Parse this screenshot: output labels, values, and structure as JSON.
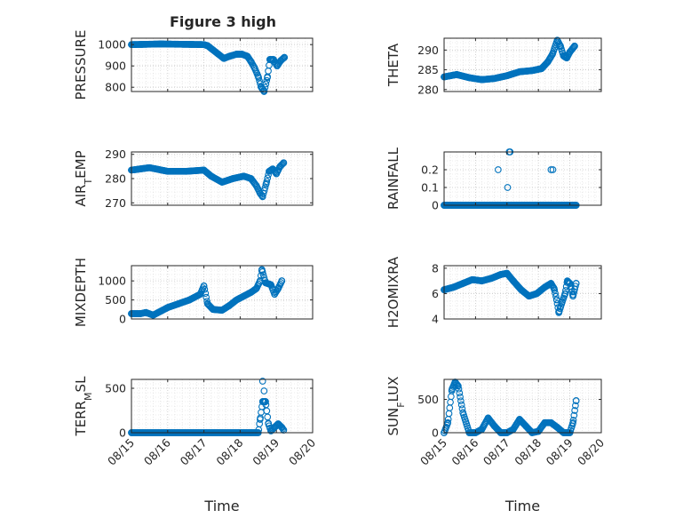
{
  "figure": {
    "title": "Figure 3 high",
    "marker_color": "#0072BD"
  },
  "chart_data": [
    {
      "type": "scatter",
      "ylabel": "PRESSURE",
      "xlabel": "",
      "title": "Figure 3 high",
      "xlim": [
        0,
        5
      ],
      "ylim": [
        780,
        1030
      ],
      "yticks": [
        800,
        900,
        1000
      ],
      "xticks": [
        0,
        1,
        2,
        3,
        4,
        5
      ],
      "xticklabels": [],
      "grid": true,
      "series": [
        {
          "anchors": [
            [
              0,
              1000
            ],
            [
              0.3,
              1001
            ],
            [
              0.8,
              1003
            ],
            [
              1.2,
              1002
            ],
            [
              1.6,
              1001
            ],
            [
              2.0,
              1000
            ],
            [
              2.1,
              995
            ],
            [
              2.25,
              975
            ],
            [
              2.4,
              955
            ],
            [
              2.55,
              935
            ],
            [
              2.7,
              945
            ],
            [
              2.9,
              955
            ],
            [
              3.05,
              955
            ],
            [
              3.2,
              945
            ],
            [
              3.3,
              920
            ],
            [
              3.4,
              890
            ],
            [
              3.5,
              850
            ],
            [
              3.58,
              800
            ],
            [
              3.66,
              780
            ],
            [
              3.75,
              845
            ],
            [
              3.82,
              930
            ],
            [
              3.92,
              930
            ],
            [
              4.02,
              900
            ],
            [
              4.12,
              925
            ],
            [
              4.22,
              940
            ]
          ]
        }
      ]
    },
    {
      "type": "scatter",
      "ylabel": "THETA",
      "xlabel": "",
      "xlim": [
        0,
        5
      ],
      "ylim": [
        279.5,
        293
      ],
      "yticks": [
        280,
        285,
        290
      ],
      "xticks": [
        0,
        1,
        2,
        3,
        4,
        5
      ],
      "xticklabels": [],
      "grid": true,
      "series": [
        {
          "anchors": [
            [
              0,
              283.2
            ],
            [
              0.4,
              283.8
            ],
            [
              0.8,
              283
            ],
            [
              1.2,
              282.5
            ],
            [
              1.6,
              282.8
            ],
            [
              2.0,
              283.5
            ],
            [
              2.4,
              284.5
            ],
            [
              2.8,
              284.8
            ],
            [
              3.1,
              285.3
            ],
            [
              3.3,
              287
            ],
            [
              3.45,
              289
            ],
            [
              3.6,
              292.5
            ],
            [
              3.7,
              291
            ],
            [
              3.8,
              288.5
            ],
            [
              3.9,
              288
            ],
            [
              4.0,
              289.5
            ],
            [
              4.15,
              291
            ]
          ]
        }
      ]
    },
    {
      "type": "scatter",
      "ylabel": "AIR_TEMP",
      "xlabel": "",
      "xlim": [
        0,
        5
      ],
      "ylim": [
        269,
        291
      ],
      "yticks": [
        270,
        280,
        290
      ],
      "xticks": [
        0,
        1,
        2,
        3,
        4,
        5
      ],
      "xticklabels": [],
      "grid": true,
      "series": [
        {
          "anchors": [
            [
              0,
              283.5
            ],
            [
              0.5,
              284.5
            ],
            [
              1.0,
              283
            ],
            [
              1.5,
              283
            ],
            [
              2.0,
              283.5
            ],
            [
              2.2,
              281
            ],
            [
              2.5,
              278.5
            ],
            [
              2.8,
              280
            ],
            [
              3.1,
              281
            ],
            [
              3.3,
              280
            ],
            [
              3.45,
              277
            ],
            [
              3.55,
              274
            ],
            [
              3.62,
              272.5
            ],
            [
              3.72,
              278
            ],
            [
              3.8,
              283
            ],
            [
              3.9,
              284
            ],
            [
              4.0,
              282
            ],
            [
              4.1,
              285
            ],
            [
              4.2,
              286.5
            ]
          ]
        }
      ]
    },
    {
      "type": "scatter",
      "ylabel": "RAINFALL",
      "xlabel": "",
      "xlim": [
        0,
        5
      ],
      "ylim": [
        0,
        0.3
      ],
      "yticks": [
        0,
        0.1,
        0.2
      ],
      "xticks": [
        0,
        1,
        2,
        3,
        4,
        5
      ],
      "xticklabels": [],
      "grid": true,
      "series": [
        {
          "anchors": [
            [
              0,
              0
            ],
            [
              4.2,
              0
            ]
          ],
          "extra_points": [
            [
              1.72,
              0.2
            ],
            [
              2.02,
              0.1
            ],
            [
              2.07,
              0.3
            ],
            [
              2.1,
              0.3
            ],
            [
              3.4,
              0.2
            ],
            [
              3.46,
              0.2
            ]
          ]
        }
      ]
    },
    {
      "type": "scatter",
      "ylabel": "MIXDEPTH",
      "xlabel": "",
      "xlim": [
        0,
        5
      ],
      "ylim": [
        0,
        1400
      ],
      "yticks": [
        0,
        500,
        1000
      ],
      "xticks": [
        0,
        1,
        2,
        3,
        4,
        5
      ],
      "xticklabels": [],
      "grid": true,
      "series": [
        {
          "anchors": [
            [
              0,
              140
            ],
            [
              0.25,
              140
            ],
            [
              0.4,
              170
            ],
            [
              0.6,
              100
            ],
            [
              0.8,
              200
            ],
            [
              1.0,
              300
            ],
            [
              1.3,
              400
            ],
            [
              1.6,
              500
            ],
            [
              1.9,
              650
            ],
            [
              2.0,
              870
            ],
            [
              2.1,
              400
            ],
            [
              2.25,
              250
            ],
            [
              2.5,
              230
            ],
            [
              2.7,
              350
            ],
            [
              2.9,
              500
            ],
            [
              3.1,
              600
            ],
            [
              3.3,
              700
            ],
            [
              3.45,
              800
            ],
            [
              3.55,
              1000
            ],
            [
              3.6,
              1300
            ],
            [
              3.7,
              950
            ],
            [
              3.85,
              900
            ],
            [
              3.95,
              650
            ],
            [
              4.05,
              800
            ],
            [
              4.15,
              1000
            ]
          ]
        }
      ]
    },
    {
      "type": "scatter",
      "ylabel": "H2OMIXRA",
      "xlabel": "",
      "xlim": [
        0,
        5
      ],
      "ylim": [
        4,
        8.2
      ],
      "yticks": [
        4,
        6,
        8
      ],
      "xticks": [
        0,
        1,
        2,
        3,
        4,
        5
      ],
      "xticklabels": [],
      "grid": true,
      "series": [
        {
          "anchors": [
            [
              0,
              6.3
            ],
            [
              0.3,
              6.5
            ],
            [
              0.6,
              6.8
            ],
            [
              0.9,
              7.1
            ],
            [
              1.2,
              7.0
            ],
            [
              1.5,
              7.2
            ],
            [
              1.8,
              7.5
            ],
            [
              2.0,
              7.6
            ],
            [
              2.2,
              7.0
            ],
            [
              2.45,
              6.3
            ],
            [
              2.7,
              5.8
            ],
            [
              2.95,
              6.0
            ],
            [
              3.2,
              6.5
            ],
            [
              3.4,
              6.8
            ],
            [
              3.5,
              6.4
            ],
            [
              3.58,
              5.5
            ],
            [
              3.65,
              4.5
            ],
            [
              3.75,
              5.3
            ],
            [
              3.85,
              6.0
            ],
            [
              3.92,
              7.0
            ],
            [
              4.0,
              6.8
            ],
            [
              4.1,
              5.8
            ],
            [
              4.2,
              6.8
            ]
          ]
        }
      ]
    },
    {
      "type": "scatter",
      "ylabel": "TERR_MSL",
      "xlabel": "Time",
      "xlim": [
        0,
        5
      ],
      "ylim": [
        0,
        600
      ],
      "yticks": [
        0,
        500
      ],
      "xticks": [
        0,
        1,
        2,
        3,
        4,
        5
      ],
      "xticklabels": [
        "08/15",
        "08/16",
        "08/17",
        "08/18",
        "08/19",
        "08/20"
      ],
      "grid": true,
      "series": [
        {
          "anchors": [
            [
              0,
              0
            ],
            [
              3.3,
              0
            ],
            [
              3.5,
              0
            ],
            [
              3.55,
              150
            ],
            [
              3.62,
              350
            ],
            [
              3.7,
              350
            ],
            [
              3.78,
              100
            ],
            [
              3.85,
              20
            ],
            [
              3.95,
              60
            ],
            [
              4.05,
              100
            ],
            [
              4.15,
              60
            ],
            [
              4.2,
              30
            ]
          ],
          "extra_points": [
            [
              3.62,
              580
            ],
            [
              3.66,
              470
            ],
            [
              3.7,
              350
            ]
          ]
        }
      ]
    },
    {
      "type": "scatter",
      "ylabel": "SUN_FLUX",
      "xlabel": "Time",
      "xlim": [
        0,
        5
      ],
      "ylim": [
        0,
        800
      ],
      "yticks": [
        0,
        500
      ],
      "xticks": [
        0,
        1,
        2,
        3,
        4,
        5
      ],
      "xticklabels": [
        "08/15",
        "08/16",
        "08/17",
        "08/18",
        "08/19",
        "08/20"
      ],
      "grid": true,
      "series": [
        {
          "anchors": [
            [
              0,
              0
            ],
            [
              0.12,
              150
            ],
            [
              0.25,
              650
            ],
            [
              0.35,
              760
            ],
            [
              0.45,
              700
            ],
            [
              0.6,
              300
            ],
            [
              0.8,
              0
            ],
            [
              1.0,
              0
            ],
            [
              1.2,
              50
            ],
            [
              1.4,
              220
            ],
            [
              1.6,
              100
            ],
            [
              1.8,
              0
            ],
            [
              2.0,
              0
            ],
            [
              2.2,
              50
            ],
            [
              2.4,
              200
            ],
            [
              2.6,
              100
            ],
            [
              2.8,
              0
            ],
            [
              3.0,
              20
            ],
            [
              3.2,
              150
            ],
            [
              3.4,
              150
            ],
            [
              3.6,
              80
            ],
            [
              3.8,
              0
            ],
            [
              4.0,
              0
            ],
            [
              4.1,
              150
            ],
            [
              4.2,
              480
            ]
          ]
        }
      ]
    }
  ]
}
